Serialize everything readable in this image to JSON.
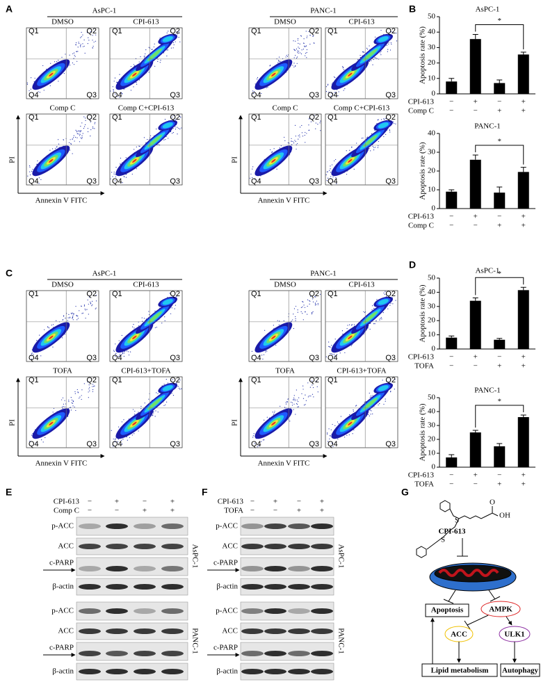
{
  "letters": [
    "A",
    "B",
    "C",
    "D",
    "E",
    "F",
    "G"
  ],
  "flow": {
    "cell_lines": [
      "AsPC-1",
      "PANC-1"
    ],
    "quadrants": [
      "Q1",
      "Q2",
      "Q3",
      "Q4"
    ],
    "y_axis": "PI",
    "x_axis": "Annexin V FITC",
    "A": [
      "DMSO",
      "CPI-613",
      "Comp C",
      "Comp C+CPI-613"
    ],
    "C": [
      "DMSO",
      "CPI-613",
      "TOFA",
      "CPI-613+TOFA"
    ]
  },
  "chart_data": [
    {
      "type": "bar",
      "title": "AsPC-1",
      "y_label": "Apoptosis rate (%)",
      "values": [
        8,
        35.5,
        7,
        25.5
      ],
      "errors": [
        2,
        3,
        2,
        1.5
      ],
      "color": "#000000",
      "ylim": [
        0,
        50
      ],
      "yticks": [
        0,
        10,
        20,
        30,
        40,
        50
      ],
      "annotation": "*",
      "treatments": [
        {
          "name": "CPI-613",
          "signs": [
            "−",
            "+",
            "−",
            "+"
          ]
        },
        {
          "name": "Comp C",
          "signs": [
            "−",
            "−",
            "+",
            "+"
          ]
        }
      ]
    },
    {
      "type": "bar",
      "title": "PANC-1",
      "y_label": "Apoptosis rate (%)",
      "values": [
        9,
        26,
        8.5,
        19.5
      ],
      "errors": [
        1,
        2.5,
        3,
        2.5
      ],
      "color": "#000000",
      "ylim": [
        0,
        40
      ],
      "yticks": [
        0,
        10,
        20,
        30,
        40
      ],
      "annotation": "*",
      "treatments": [
        {
          "name": "CPI-613",
          "signs": [
            "−",
            "+",
            "−",
            "+"
          ]
        },
        {
          "name": "Comp C",
          "signs": [
            "−",
            "−",
            "+",
            "+"
          ]
        }
      ]
    },
    {
      "type": "bar",
      "title": "AsPC-1",
      "y_label": "Apoptosis rate (%)",
      "values": [
        8,
        34,
        6.5,
        41.5
      ],
      "errors": [
        1.2,
        2,
        1,
        2
      ],
      "color": "#000000",
      "ylim": [
        0,
        50
      ],
      "yticks": [
        0,
        10,
        20,
        30,
        40,
        50
      ],
      "annotation": "*",
      "treatments": [
        {
          "name": "CPI-613",
          "signs": [
            "−",
            "+",
            "−",
            "+"
          ]
        },
        {
          "name": "TOFA",
          "signs": [
            "−",
            "−",
            "+",
            "+"
          ]
        }
      ]
    },
    {
      "type": "bar",
      "title": "PANC-1",
      "y_label": "Apoptosis rate (%)",
      "values": [
        7,
        25,
        15,
        36
      ],
      "errors": [
        2,
        1.5,
        2,
        1.5
      ],
      "color": "#000000",
      "ylim": [
        0,
        50
      ],
      "yticks": [
        0,
        10,
        20,
        30,
        40,
        50
      ],
      "annotation": "*",
      "treatments": [
        {
          "name": "CPI-613",
          "signs": [
            "−",
            "+",
            "−",
            "+"
          ]
        },
        {
          "name": "TOFA",
          "signs": [
            "−",
            "−",
            "+",
            "+"
          ]
        }
      ]
    }
  ],
  "blots": {
    "E": {
      "treatments": [
        {
          "name": "CPI-613",
          "signs": [
            "−",
            "+",
            "−",
            "+"
          ]
        },
        {
          "name": "Comp C",
          "signs": [
            "−",
            "−",
            "+",
            "+"
          ]
        }
      ],
      "cell_lines": [
        "AsPC-1",
        "PANC-1"
      ],
      "proteins": [
        "p-ACC",
        "ACC",
        "c-PARP",
        "β-actin"
      ]
    },
    "F": {
      "treatments": [
        {
          "name": "CPI-613",
          "signs": [
            "−",
            "+",
            "−",
            "+"
          ]
        },
        {
          "name": "TOFA",
          "signs": [
            "−",
            "−",
            "+",
            "+"
          ]
        }
      ],
      "cell_lines": [
        "AsPC-1",
        "PANC-1"
      ],
      "proteins": [
        "p-ACC",
        "ACC",
        "c-PARP",
        "β-actin"
      ]
    }
  },
  "diagram": {
    "drug": "CPI-613",
    "atoms": [
      "S",
      "S",
      "OH",
      "O"
    ],
    "apoptosis": "Apoptosis",
    "ampk": "AMPK",
    "acc": "ACC",
    "ulk1": "ULK1",
    "lipid": "Lipid metabolism",
    "autophagy": "Autophagy"
  }
}
